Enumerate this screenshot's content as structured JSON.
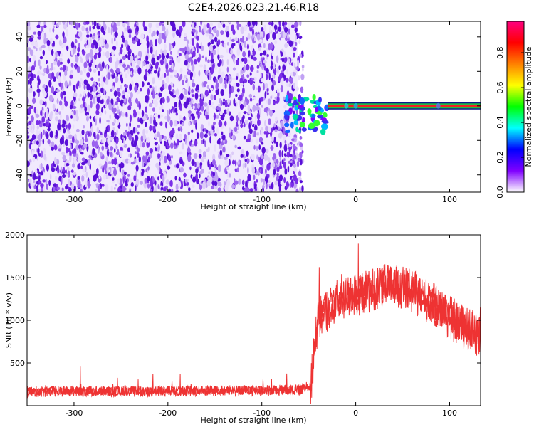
{
  "title": "C2E4.2026.023.21.46.R18",
  "colors": {
    "spectrogram_dots": "#6a1de0",
    "spectrogram_light": "#c9b3f5",
    "trace_red": "#ee3333",
    "band_red": "#ee2222",
    "band_green": "#22bb44",
    "axis": "#000000"
  },
  "colorbar": {
    "label": "Normalized spectral amplitude",
    "ticks": [
      "0.0",
      "0.2",
      "0.4",
      "0.6",
      "0.8"
    ],
    "tick_values": [
      0.0,
      0.2,
      0.4,
      0.6,
      0.8
    ],
    "range": [
      0.0,
      0.98
    ],
    "colormap_stops": [
      "#ffffff",
      "#8000ff",
      "#0000ff",
      "#00ffff",
      "#00ff00",
      "#ffff00",
      "#ff8000",
      "#ff0000",
      "#ff0080"
    ]
  },
  "chart_data": [
    {
      "type": "heatmap",
      "description_key": "spectrogram",
      "xlabel": "Height of straight line (km)",
      "ylabel": "Frequency (Hz)",
      "xlim": [
        -350,
        133
      ],
      "ylim": [
        -50,
        49
      ],
      "x_ticks": [
        -300,
        -200,
        -100,
        0,
        100
      ],
      "y_ticks": [
        -40,
        -20,
        0,
        20,
        40
      ],
      "regions": [
        {
          "name": "noise",
          "x_range": [
            -350,
            -62
          ],
          "f_range": [
            -50,
            49
          ],
          "level": 0.15
        },
        {
          "name": "onset_cluster",
          "x_range": [
            -75,
            -30
          ],
          "f_range": [
            -15,
            5
          ],
          "level": 0.45
        },
        {
          "name": "carrier_line",
          "x_range": [
            -30,
            133
          ],
          "f_center": 0,
          "level": 0.98
        }
      ]
    },
    {
      "type": "line",
      "description_key": "snr",
      "xlabel": "Height of straight line (km)",
      "ylabel": "SNR (10 * v/v)",
      "xlim": [
        -350,
        133
      ],
      "ylim": [
        0,
        2000
      ],
      "x_ticks": [
        -300,
        -200,
        -100,
        0,
        100
      ],
      "y_ticks": [
        500,
        1000,
        1500,
        2000
      ],
      "series": [
        {
          "x": [
            -350,
            -300,
            -250,
            -200,
            -150,
            -100,
            -60,
            -48,
            -45,
            -40,
            -30,
            -20,
            -10,
            0,
            10,
            20,
            30,
            40,
            50,
            60,
            70,
            80,
            90,
            100,
            110,
            120,
            133
          ],
          "y": [
            170,
            175,
            170,
            175,
            180,
            180,
            190,
            250,
            600,
            1050,
            1150,
            1250,
            1300,
            1330,
            1350,
            1400,
            1420,
            1430,
            1400,
            1360,
            1300,
            1230,
            1150,
            1060,
            980,
            920,
            830
          ]
        }
      ]
    }
  ]
}
